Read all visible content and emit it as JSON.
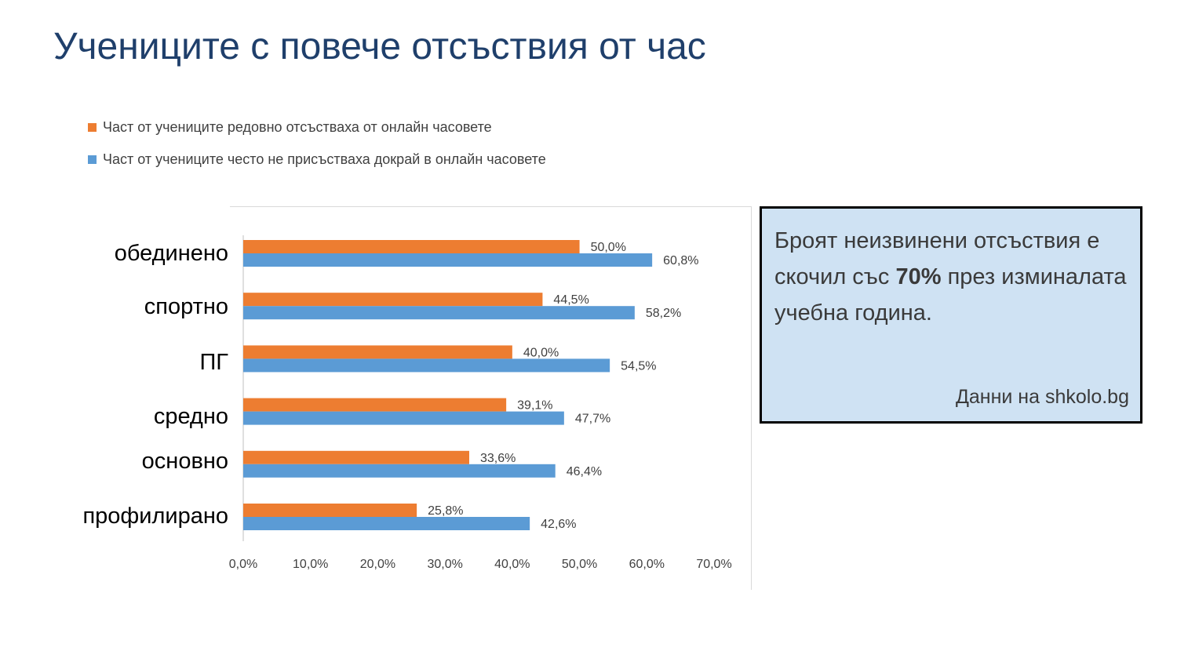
{
  "slide": {
    "title": "Учениците с повече отсъствия от час"
  },
  "info_box": {
    "text_before": "Броят неизвинени отсъствия е скочил със ",
    "highlight": "70%",
    "text_after": " през изминалата учебна година.",
    "source": "Данни на shkolo.bg"
  },
  "chart_data": {
    "type": "bar",
    "orientation": "horizontal",
    "categories": [
      "обединено",
      "спортно",
      "ПГ",
      "средно",
      "основно",
      "профилирано"
    ],
    "series": [
      {
        "name": "Част от учениците редовно отсъстваха от онлайн часовете",
        "color": "#ed7d31",
        "values": [
          50.0,
          44.5,
          40.0,
          39.1,
          33.6,
          25.8
        ],
        "labels": [
          "50,0%",
          "44,5%",
          "40,0%",
          "39,1%",
          "33,6%",
          "25,8%"
        ]
      },
      {
        "name": "Част от учениците често не присъстваха докрай в онлайн часовете",
        "color": "#5b9bd5",
        "values": [
          60.8,
          58.2,
          54.5,
          47.7,
          46.4,
          42.6
        ],
        "labels": [
          "60,8%",
          "58,2%",
          "54,5%",
          "47,7%",
          "46,4%",
          "42,6%"
        ]
      }
    ],
    "xlim": [
      0,
      70
    ],
    "xticks": [
      0,
      10,
      20,
      30,
      40,
      50,
      60,
      70
    ],
    "xtick_labels": [
      "0,0%",
      "10,0%",
      "20,0%",
      "30,0%",
      "40,0%",
      "50,0%",
      "60,0%",
      "70,0%"
    ],
    "legend_position": "top",
    "grid": false
  }
}
